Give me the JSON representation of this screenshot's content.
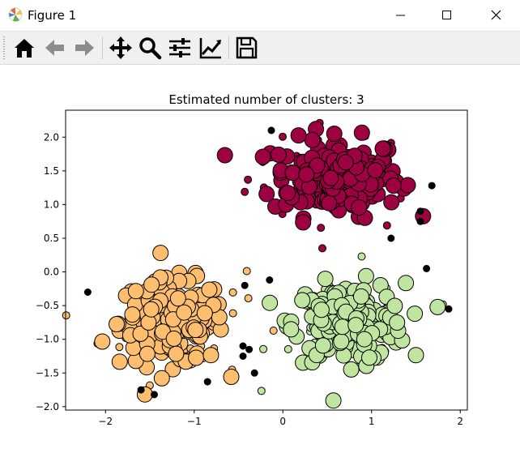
{
  "window": {
    "title": "Figure 1",
    "controls": [
      "minimize",
      "maximize",
      "close"
    ]
  },
  "toolbar": {
    "buttons": [
      "home-icon",
      "back-icon",
      "forward-icon",
      "pan-icon",
      "zoom-icon",
      "subplots-icon",
      "edit-curves-icon",
      "save-icon"
    ]
  },
  "chart_data": {
    "type": "scatter",
    "title": "Estimated number of clusters: 3",
    "xlabel": "",
    "ylabel": "",
    "xlim": [
      -2.45,
      2.08
    ],
    "ylim": [
      -2.05,
      2.4
    ],
    "xticks": [
      -2,
      -1,
      0,
      1,
      2
    ],
    "yticks": [
      -2.0,
      -1.5,
      -1.0,
      -0.5,
      0.0,
      0.5,
      1.0,
      1.5,
      2.0
    ],
    "xtick_labels": [
      "−2",
      "−1",
      "0",
      "1",
      "2"
    ],
    "ytick_labels": [
      "−2.0",
      "−1.5",
      "−1.0",
      "−0.5",
      "0.0",
      "0.5",
      "1.0",
      "1.5",
      "2.0"
    ],
    "grid": false,
    "clusters": [
      {
        "color": "#9e0142",
        "center": [
          0.6,
          1.4
        ],
        "spread": [
          0.4,
          0.32
        ],
        "core_count": 170,
        "border_count": 40
      },
      {
        "color": "#fdbf6f",
        "center": [
          -1.25,
          -0.75
        ],
        "spread": [
          0.33,
          0.35
        ],
        "core_count": 170,
        "border_count": 40
      },
      {
        "color": "#bfe5a0",
        "center": [
          0.75,
          -0.75
        ],
        "spread": [
          0.35,
          0.32
        ],
        "core_count": 170,
        "border_count": 40
      }
    ],
    "noise": {
      "color": "#000000",
      "points": [
        [
          -2.2,
          -0.3
        ],
        [
          -1.6,
          -1.75
        ],
        [
          -1.45,
          -1.82
        ],
        [
          -0.85,
          -1.63
        ],
        [
          -0.45,
          -1.1
        ],
        [
          -0.45,
          -1.25
        ],
        [
          -0.38,
          -1.15
        ],
        [
          -0.32,
          -1.5
        ],
        [
          -0.43,
          -0.2
        ],
        [
          -0.15,
          -0.12
        ],
        [
          -0.13,
          2.1
        ],
        [
          1.22,
          0.5
        ],
        [
          1.55,
          0.9
        ],
        [
          1.55,
          0.75
        ],
        [
          1.68,
          1.28
        ],
        [
          1.62,
          0.05
        ],
        [
          1.87,
          -0.55
        ]
      ]
    }
  }
}
